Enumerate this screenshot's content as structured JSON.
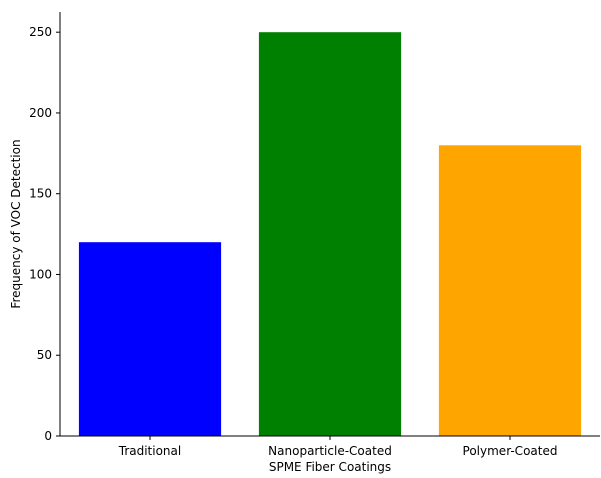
{
  "chart_data": {
    "type": "bar",
    "categories": [
      "Traditional",
      "Nanoparticle-Coated",
      "Polymer-Coated"
    ],
    "values": [
      120,
      250,
      180
    ],
    "colors": [
      "#0000ff",
      "#008000",
      "#ffa500"
    ],
    "xlabel": "SPME Fiber Coatings",
    "ylabel": "Frequency of VOC Detection",
    "ylim": [
      0,
      262.5
    ],
    "yticks": [
      0,
      50,
      100,
      150,
      200,
      250
    ],
    "grid": false,
    "legend": "none",
    "spines": [
      "left",
      "bottom"
    ]
  }
}
